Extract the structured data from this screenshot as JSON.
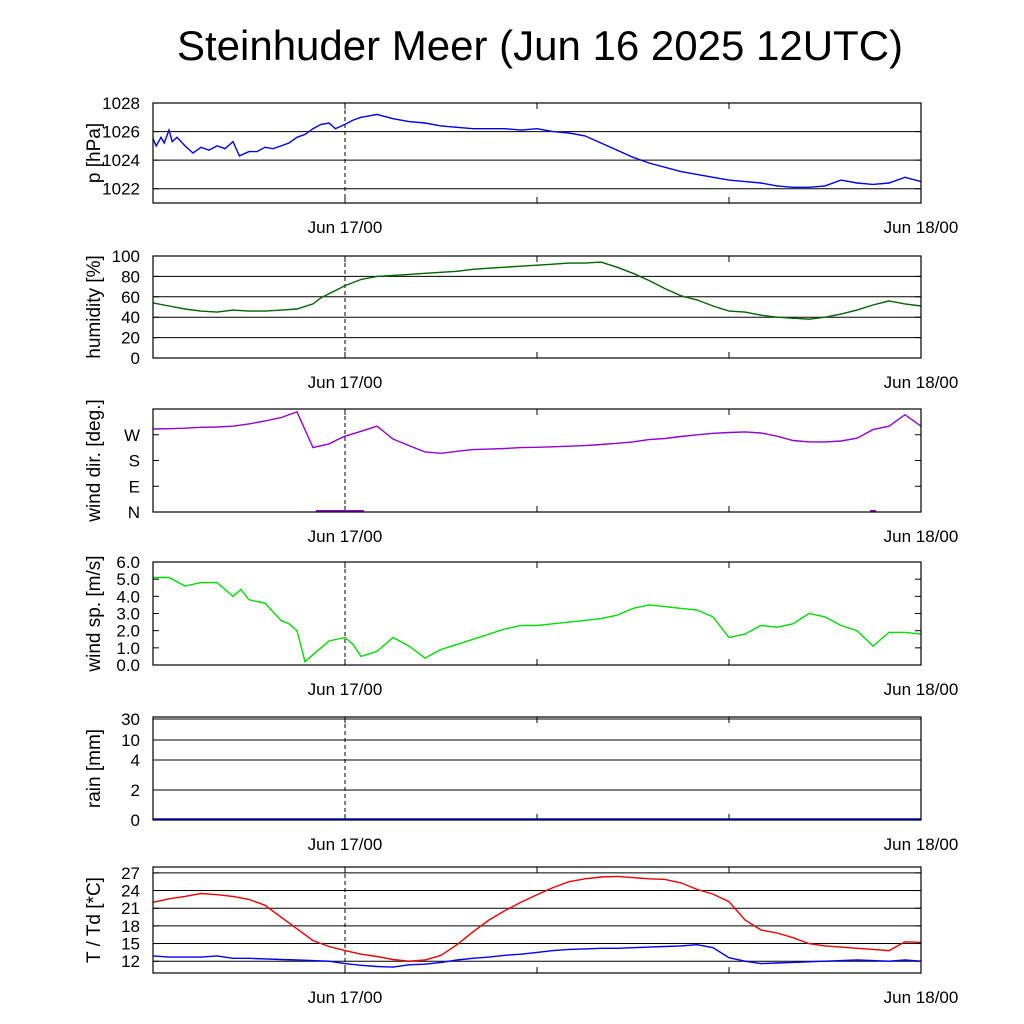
{
  "title": "Steinhuder Meer (Jun 16 2025 12UTC)",
  "x_axis": {
    "tick_labels": [
      "Jun 17/00",
      "Jun 18/00"
    ],
    "minor_tick": "Jun 17/12",
    "range_hours": [
      -12,
      36
    ]
  },
  "chart_data": [
    {
      "type": "line",
      "ylabel": "p [hPa]",
      "ylim": [
        1021,
        1028
      ],
      "yticks": [
        1022,
        1024,
        1026,
        1028
      ],
      "ytick_labels": [
        "1022",
        "1024",
        "1026",
        "1028"
      ],
      "gridlines": [
        1022,
        1024,
        1026,
        1028
      ],
      "color": "#0000ee",
      "series": [
        {
          "x": [
            -12,
            -11.8,
            -11.5,
            -11.3,
            -11,
            -10.8,
            -10.5,
            -10,
            -9.5,
            -9,
            -8.5,
            -8,
            -7.5,
            -7,
            -6.6,
            -6,
            -5.5,
            -5,
            -4.5,
            -4,
            -3.5,
            -3,
            -2.5,
            -2,
            -1.5,
            -1,
            -0.6,
            0,
            0.5,
            1,
            1.5,
            2,
            3,
            4,
            5,
            6,
            7,
            8,
            9,
            10,
            11,
            12,
            13,
            14,
            15,
            16,
            17,
            18,
            19,
            20,
            21,
            22,
            23,
            24,
            25,
            26,
            27,
            28,
            29,
            30,
            31,
            32,
            33,
            34,
            35,
            36
          ],
          "y": [
            1025.5,
            1025.0,
            1025.6,
            1025.2,
            1026.1,
            1025.3,
            1025.6,
            1025.0,
            1024.5,
            1024.9,
            1024.7,
            1025.0,
            1024.8,
            1025.3,
            1024.3,
            1024.6,
            1024.6,
            1024.9,
            1024.8,
            1025.0,
            1025.2,
            1025.6,
            1025.8,
            1026.2,
            1026.5,
            1026.6,
            1026.2,
            1026.5,
            1026.8,
            1027.0,
            1027.1,
            1027.2,
            1026.9,
            1026.7,
            1026.6,
            1026.4,
            1026.3,
            1026.2,
            1026.2,
            1026.2,
            1026.1,
            1026.2,
            1026.0,
            1025.9,
            1025.7,
            1025.2,
            1024.7,
            1024.2,
            1023.8,
            1023.5,
            1023.2,
            1023.0,
            1022.8,
            1022.6,
            1022.5,
            1022.4,
            1022.2,
            1022.1,
            1022.1,
            1022.2,
            1022.6,
            1022.4,
            1022.3,
            1022.4,
            1022.8,
            1022.5
          ]
        }
      ]
    },
    {
      "type": "line",
      "ylabel": "humidity [%]",
      "ylim": [
        0,
        100
      ],
      "yticks": [
        0,
        20,
        40,
        60,
        80,
        100
      ],
      "ytick_labels": [
        "0",
        "20",
        "40",
        "60",
        "80",
        "100"
      ],
      "gridlines": [
        20,
        40,
        60,
        80,
        100
      ],
      "color": "#006400",
      "series": [
        {
          "x": [
            -12,
            -11,
            -10,
            -9,
            -8,
            -7,
            -6,
            -5,
            -4,
            -3,
            -2,
            -1.5,
            -1,
            -0.5,
            0,
            1,
            2,
            3,
            4,
            5,
            6,
            7,
            8,
            9,
            10,
            11,
            12,
            13,
            14,
            15,
            16,
            17,
            18,
            19,
            20,
            21,
            22,
            23,
            24,
            25,
            26,
            27,
            28,
            29,
            30,
            31,
            32,
            33,
            34,
            35,
            36
          ],
          "y": [
            54,
            51,
            48,
            46,
            45,
            47,
            46,
            46,
            47,
            48,
            53,
            59,
            63,
            67,
            71,
            77,
            80,
            81,
            82,
            83,
            84,
            85,
            87,
            88,
            89,
            90,
            91,
            92,
            93,
            93,
            94,
            89,
            83,
            76,
            68,
            61,
            57,
            51,
            46,
            45,
            42,
            40,
            39,
            38,
            40,
            43,
            47,
            52,
            56,
            53,
            51
          ]
        }
      ]
    },
    {
      "type": "line",
      "ylabel": "wind dir. [deg.]",
      "ylim": [
        0,
        360
      ],
      "yticks": [
        0,
        90,
        180,
        270
      ],
      "ytick_labels": [
        "N",
        "E",
        "S",
        "W"
      ],
      "gridlines": [],
      "color": "#9400d3",
      "series": [
        {
          "x": [
            -12,
            -11,
            -10,
            -9,
            -8,
            -7,
            -6,
            -5,
            -4,
            -3,
            -2,
            -1,
            -0.5,
            0,
            1,
            2,
            3,
            4,
            5,
            6,
            7,
            8,
            9,
            10,
            11,
            12,
            13,
            14,
            15,
            16,
            17,
            18,
            19,
            20,
            21,
            22,
            23,
            24,
            25,
            26,
            27,
            28,
            29,
            30,
            31,
            32,
            33,
            34,
            35,
            36
          ],
          "y": [
            290,
            291,
            293,
            296,
            297,
            300,
            308,
            318,
            330,
            350,
            225,
            238,
            252,
            265,
            282,
            300,
            255,
            232,
            210,
            205,
            212,
            218,
            220,
            222,
            225,
            226,
            228,
            230,
            232,
            236,
            240,
            245,
            253,
            257,
            264,
            270,
            275,
            278,
            280,
            276,
            265,
            250,
            245,
            245,
            248,
            258,
            288,
            300,
            340,
            300
          ]
        }
      ]
    },
    {
      "type": "line",
      "ylabel": "wind sp. [m/s]",
      "ylim": [
        0,
        6
      ],
      "yticks": [
        0,
        1,
        2,
        3,
        4,
        5,
        6
      ],
      "ytick_labels": [
        "0.0",
        "1.0",
        "2.0",
        "3.0",
        "4.0",
        "5.0",
        "6.0"
      ],
      "gridlines": [],
      "color": "#00dd00",
      "series": [
        {
          "x": [
            -12,
            -11,
            -10,
            -9,
            -8,
            -7,
            -6.5,
            -6,
            -5,
            -4,
            -3.5,
            -3,
            -2.5,
            -2,
            -1,
            0,
            0.5,
            1,
            2,
            3,
            4,
            5,
            6,
            7,
            8,
            9,
            10,
            11,
            12,
            13,
            14,
            15,
            16,
            17,
            18,
            19,
            20,
            21,
            22,
            23,
            24,
            25,
            26,
            27,
            28,
            29,
            30,
            31,
            32,
            33,
            34,
            35,
            36
          ],
          "y": [
            5.1,
            5.1,
            4.6,
            4.8,
            4.8,
            4.0,
            4.4,
            3.8,
            3.6,
            2.6,
            2.4,
            2.0,
            0.2,
            0.6,
            1.4,
            1.6,
            1.2,
            0.5,
            0.8,
            1.6,
            1.1,
            0.4,
            0.9,
            1.2,
            1.5,
            1.8,
            2.1,
            2.3,
            2.3,
            2.4,
            2.5,
            2.6,
            2.7,
            2.9,
            3.3,
            3.5,
            3.4,
            3.3,
            3.2,
            2.8,
            1.6,
            1.8,
            2.3,
            2.2,
            2.4,
            3.0,
            2.8,
            2.3,
            2.0,
            1.1,
            1.9,
            1.9,
            1.8
          ]
        }
      ]
    },
    {
      "type": "line",
      "ylabel": "rain [mm]",
      "ytick_labels": [
        "0",
        "2",
        "4",
        "10",
        "30"
      ],
      "gridlines": [
        "2",
        "4",
        "10",
        "30"
      ],
      "color": "#0000ee",
      "series": [
        {
          "x": [
            -12,
            36
          ],
          "y": [
            0,
            0
          ]
        }
      ]
    },
    {
      "type": "line",
      "ylabel": "T / Td [*C]",
      "ylim": [
        10,
        28
      ],
      "yticks": [
        12,
        15,
        18,
        21,
        24,
        27
      ],
      "ytick_labels": [
        "12",
        "15",
        "18",
        "21",
        "24",
        "27"
      ],
      "gridlines": [
        12,
        15,
        18,
        21,
        24,
        27
      ],
      "series": [
        {
          "name": "T",
          "color": "#ee0000",
          "x": [
            -12,
            -11,
            -10,
            -9,
            -8,
            -7,
            -6,
            -5,
            -4,
            -3,
            -2,
            -1,
            0,
            1,
            2,
            3,
            4,
            5,
            6,
            7,
            8,
            9,
            10,
            11,
            12,
            13,
            14,
            15,
            16,
            17,
            18,
            19,
            20,
            21,
            22,
            23,
            24,
            25,
            26,
            27,
            28,
            29,
            30,
            31,
            32,
            33,
            34,
            35,
            36
          ],
          "y": [
            22,
            22.6,
            23,
            23.5,
            23.3,
            23,
            22.5,
            21.5,
            19.5,
            17.5,
            15.5,
            14.5,
            13.8,
            13.2,
            12.8,
            12.3,
            12.0,
            12.2,
            13,
            14.8,
            17,
            19,
            20.6,
            22,
            23.3,
            24.5,
            25.5,
            26,
            26.3,
            26.4,
            26.2,
            26,
            25.9,
            25.3,
            24.2,
            23.4,
            22.1,
            19,
            17.3,
            16.8,
            16,
            15,
            14.6,
            14.4,
            14.2,
            14,
            13.8,
            15.3,
            15.2
          ]
        },
        {
          "name": "Td",
          "color": "#0000ee",
          "x": [
            -12,
            -11,
            -10,
            -9,
            -8,
            -7,
            -6,
            -5,
            -4,
            -3,
            -2,
            -1,
            0,
            1,
            2,
            3,
            4,
            5,
            6,
            7,
            8,
            9,
            10,
            11,
            12,
            13,
            14,
            15,
            16,
            17,
            18,
            19,
            20,
            21,
            22,
            23,
            24,
            25,
            26,
            27,
            28,
            29,
            30,
            31,
            32,
            33,
            34,
            35,
            36
          ],
          "y": [
            12.9,
            12.7,
            12.7,
            12.7,
            12.9,
            12.5,
            12.5,
            12.4,
            12.3,
            12.2,
            12.1,
            12.0,
            11.6,
            11.3,
            11.1,
            11.0,
            11.4,
            11.5,
            11.8,
            12.2,
            12.5,
            12.7,
            13,
            13.2,
            13.5,
            13.8,
            14.0,
            14.1,
            14.2,
            14.2,
            14.3,
            14.4,
            14.5,
            14.6,
            14.8,
            14.3,
            12.6,
            12.0,
            11.6,
            11.7,
            11.8,
            11.9,
            12.0,
            12.1,
            12.2,
            12.1,
            12.0,
            12.2,
            12.0
          ]
        }
      ]
    }
  ]
}
